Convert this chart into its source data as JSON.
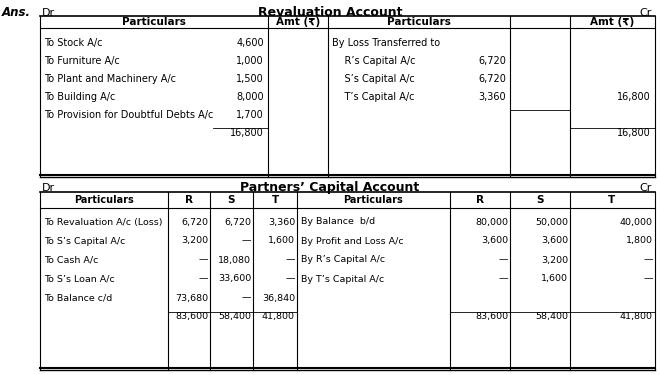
{
  "bg_color": "#ffffff",
  "ans_label": "Ans.",
  "rev_title": "Revaluation Account",
  "cap_title": "Partners’ Capital Account",
  "dr_label": "Dr",
  "cr_label": "Cr",
  "rev_header": [
    "Particulars",
    "Amt (₹)",
    "Particulars",
    "Amt (₹)"
  ],
  "rev_left_rows": [
    [
      "To Stock A/c",
      "4,600"
    ],
    [
      "To Furniture A/c",
      "1,000"
    ],
    [
      "To Plant and Machinery A/c",
      "1,500"
    ],
    [
      "To Building A/c",
      "8,000"
    ],
    [
      "To Provision for Doubtful Debts A/c",
      "1,700"
    ],
    [
      "",
      "16,800"
    ]
  ],
  "rev_right_rows": [
    [
      "By Loss Transferred to",
      "",
      ""
    ],
    [
      "    R’s Capital A/c",
      "6,720",
      ""
    ],
    [
      "    S’s Capital A/c",
      "6,720",
      ""
    ],
    [
      "    T’s Capital A/c",
      "3,360",
      "16,800"
    ],
    [
      "",
      "",
      ""
    ],
    [
      "",
      "",
      "16,800"
    ]
  ],
  "cap_header_left": [
    "Particulars",
    "R",
    "S",
    "T"
  ],
  "cap_header_right": [
    "Particulars",
    "R",
    "S",
    "T"
  ],
  "cap_left_rows": [
    [
      "To Revaluation A/c (Loss)",
      "6,720",
      "6,720",
      "3,360"
    ],
    [
      "To S’s Capital A/c",
      "3,200",
      "—",
      "1,600"
    ],
    [
      "To Cash A/c",
      "—",
      "18,080",
      "—"
    ],
    [
      "To S’s Loan A/c",
      "—",
      "33,600",
      "—"
    ],
    [
      "To Balance c/d",
      "73,680",
      "—",
      "36,840"
    ],
    [
      "",
      "83,600",
      "58,400",
      "41,800"
    ]
  ],
  "cap_right_rows": [
    [
      "By Balance  b/d",
      "80,000",
      "50,000",
      "40,000"
    ],
    [
      "By Profit and Loss A/c",
      "3,600",
      "3,600",
      "1,800"
    ],
    [
      "By R’s Capital A/c",
      "—",
      "3,200",
      "—"
    ],
    [
      "By T’s Capital A/c",
      "—",
      "1,600",
      "—"
    ],
    [
      "",
      "",
      "",
      ""
    ],
    [
      "",
      "83,600",
      "58,400",
      "41,800"
    ]
  ]
}
